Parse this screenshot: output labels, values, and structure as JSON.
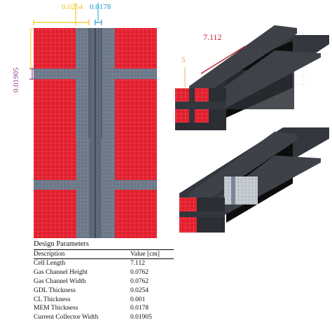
{
  "dimensions": {
    "top_width_a": "0.0254",
    "top_width_b": "0.0178",
    "left_height": "0.01905",
    "iso_dim_small": "5",
    "iso_dim_length": "7.112"
  },
  "colors": {
    "red": "#e31e2d",
    "gray": "#6b7788",
    "black": "#0d0d0d",
    "dark": "#33373d",
    "yellow": "#f2c51c",
    "cyan": "#1f9fce",
    "purple": "#9a3c8e",
    "red_text": "#c32232",
    "orange": "#e2a248"
  },
  "table": {
    "title": "Design Parameters",
    "header": {
      "description": "Description",
      "value": "Value [cm]"
    },
    "rows": [
      {
        "description": "Cell Length",
        "value": "7.112"
      },
      {
        "description": "Gas Channel Height",
        "value": "0.0762"
      },
      {
        "description": "Gas Channel Width",
        "value": "0.0762"
      },
      {
        "description": "GDL Thickness",
        "value": "0.0254"
      },
      {
        "description": "CL Thickness",
        "value": "0.001"
      },
      {
        "description": "MEM Thickness",
        "value": "0.0178"
      },
      {
        "description": "Current Collector Width",
        "value": "0.01905"
      }
    ]
  }
}
